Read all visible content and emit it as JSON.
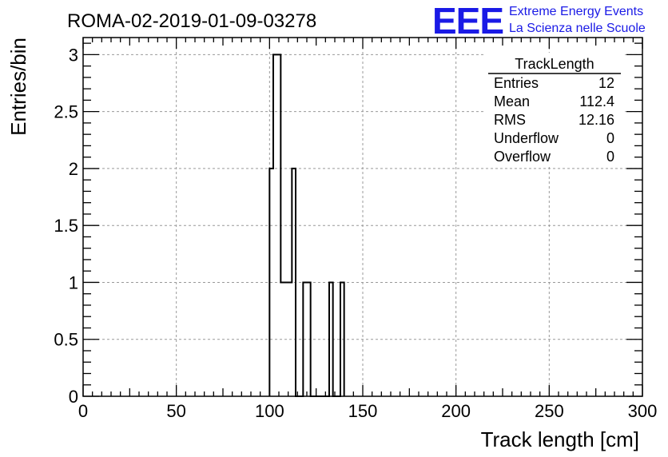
{
  "header": {
    "run_title": "ROMA-02-2019-01-09-03278",
    "logo_text": "EEE",
    "org_line1": "Extreme Energy Events",
    "org_line2": "La Scienza nelle Scuole",
    "brand_color": "#1a1ae6"
  },
  "stats_box": {
    "title": "TrackLength",
    "rows": [
      {
        "label": "Entries",
        "value": "12"
      },
      {
        "label": "Mean",
        "value": "112.4"
      },
      {
        "label": "RMS",
        "value": "12.16"
      },
      {
        "label": "Underflow",
        "value": "0"
      },
      {
        "label": "Overflow",
        "value": "0"
      }
    ]
  },
  "chart_data": {
    "type": "histogram",
    "xlabel": "Track length [cm]",
    "ylabel": "Entries/bin",
    "xlim": [
      0,
      300
    ],
    "ylim": [
      0,
      3.15
    ],
    "grid": true,
    "bin_width": 4,
    "x_ticks": [
      0,
      50,
      100,
      150,
      200,
      250,
      300
    ],
    "y_ticks": [
      0,
      0.5,
      1,
      1.5,
      2,
      2.5,
      3
    ],
    "x_tick_labels": [
      "0",
      "50",
      "100",
      "150",
      "200",
      "250",
      "300"
    ],
    "y_tick_labels": [
      "0",
      "0.5",
      "1",
      "1.5",
      "2",
      "2.5",
      "3"
    ],
    "bins": [
      {
        "x": 100,
        "count": 2
      },
      {
        "x": 102,
        "count": 3
      },
      {
        "x": 106,
        "count": 1
      },
      {
        "x": 110,
        "count": 1
      },
      {
        "x": 112,
        "count": 2
      },
      {
        "x": 114,
        "count": 0
      },
      {
        "x": 118,
        "count": 1
      },
      {
        "x": 122,
        "count": 0
      },
      {
        "x": 132,
        "count": 1
      },
      {
        "x": 134,
        "count": 0
      },
      {
        "x": 138,
        "count": 1
      },
      {
        "x": 140,
        "count": 0
      }
    ],
    "bins_end": 140,
    "line_color": "#000000"
  }
}
